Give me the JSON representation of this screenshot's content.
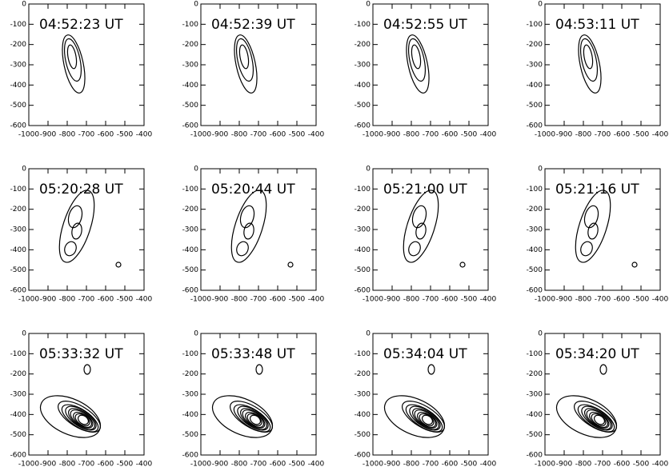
{
  "chart_data": [
    {
      "type": "contour",
      "title": "04:52:23 UT",
      "xlim": [
        -1000,
        -400
      ],
      "ylim": [
        -600,
        0
      ],
      "xticks": [
        -1000,
        -900,
        -800,
        -700,
        -600,
        -500,
        -400
      ],
      "yticks": [
        0,
        -100,
        -200,
        -300,
        -400,
        -500,
        -600
      ]
    },
    {
      "type": "contour",
      "title": "04:52:39 UT",
      "xlim": [
        -1000,
        -400
      ],
      "ylim": [
        -600,
        0
      ],
      "xticks": [
        -1000,
        -900,
        -800,
        -700,
        -600,
        -500,
        -400
      ],
      "yticks": [
        0,
        -100,
        -200,
        -300,
        -400,
        -500,
        -600
      ]
    },
    {
      "type": "contour",
      "title": "04:52:55 UT",
      "xlim": [
        -1000,
        -400
      ],
      "ylim": [
        -600,
        0
      ],
      "xticks": [
        -1000,
        -900,
        -800,
        -700,
        -600,
        -500,
        -400
      ],
      "yticks": [
        0,
        -100,
        -200,
        -300,
        -400,
        -500,
        -600
      ]
    },
    {
      "type": "contour",
      "title": "04:53:11 UT",
      "xlim": [
        -1000,
        -400
      ],
      "ylim": [
        -600,
        0
      ],
      "xticks": [
        -1000,
        -900,
        -800,
        -700,
        -600,
        -500,
        -400
      ],
      "yticks": [
        0,
        -100,
        -200,
        -300,
        -400,
        -500,
        -600
      ]
    },
    {
      "type": "contour",
      "title": "05:20:28 UT",
      "xlim": [
        -1000,
        -400
      ],
      "ylim": [
        -600,
        0
      ],
      "xticks": [
        -1000,
        -900,
        -800,
        -700,
        -600,
        -500,
        -400
      ],
      "yticks": [
        0,
        -100,
        -200,
        -300,
        -400,
        -500,
        -600
      ]
    },
    {
      "type": "contour",
      "title": "05:20:44 UT",
      "xlim": [
        -1000,
        -400
      ],
      "ylim": [
        -600,
        0
      ],
      "xticks": [
        -1000,
        -900,
        -800,
        -700,
        -600,
        -500,
        -400
      ],
      "yticks": [
        0,
        -100,
        -200,
        -300,
        -400,
        -500,
        -600
      ]
    },
    {
      "type": "contour",
      "title": "05:21:00 UT",
      "xlim": [
        -1000,
        -400
      ],
      "ylim": [
        -600,
        0
      ],
      "xticks": [
        -1000,
        -900,
        -800,
        -700,
        -600,
        -500,
        -400
      ],
      "yticks": [
        0,
        -100,
        -200,
        -300,
        -400,
        -500,
        -600
      ]
    },
    {
      "type": "contour",
      "title": "05:21:16 UT",
      "xlim": [
        -1000,
        -400
      ],
      "ylim": [
        -600,
        0
      ],
      "xticks": [
        -1000,
        -900,
        -800,
        -700,
        -600,
        -500,
        -400
      ],
      "yticks": [
        0,
        -100,
        -200,
        -300,
        -400,
        -500,
        -600
      ]
    },
    {
      "type": "contour",
      "title": "05:33:32 UT",
      "xlim": [
        -1000,
        -400
      ],
      "ylim": [
        -600,
        0
      ],
      "xticks": [
        -1000,
        -900,
        -800,
        -700,
        -600,
        -500,
        -400
      ],
      "yticks": [
        0,
        -100,
        -200,
        -300,
        -400,
        -500,
        -600
      ]
    },
    {
      "type": "contour",
      "title": "05:33:48 UT",
      "xlim": [
        -1000,
        -400
      ],
      "ylim": [
        -600,
        0
      ],
      "xticks": [
        -1000,
        -900,
        -800,
        -700,
        -600,
        -500,
        -400
      ],
      "yticks": [
        0,
        -100,
        -200,
        -300,
        -400,
        -500,
        -600
      ]
    },
    {
      "type": "contour",
      "title": "05:34:04 UT",
      "xlim": [
        -1000,
        -400
      ],
      "ylim": [
        -600,
        0
      ],
      "xticks": [
        -1000,
        -900,
        -800,
        -700,
        -600,
        -500,
        -400
      ],
      "yticks": [
        0,
        -100,
        -200,
        -300,
        -400,
        -500,
        -600
      ]
    },
    {
      "type": "contour",
      "title": "05:34:20 UT",
      "xlim": [
        -1000,
        -400
      ],
      "ylim": [
        -600,
        0
      ],
      "xticks": [
        -1000,
        -900,
        -800,
        -700,
        -600,
        -500,
        -400
      ],
      "yticks": [
        0,
        -100,
        -200,
        -300,
        -400,
        -500,
        -600
      ]
    }
  ]
}
